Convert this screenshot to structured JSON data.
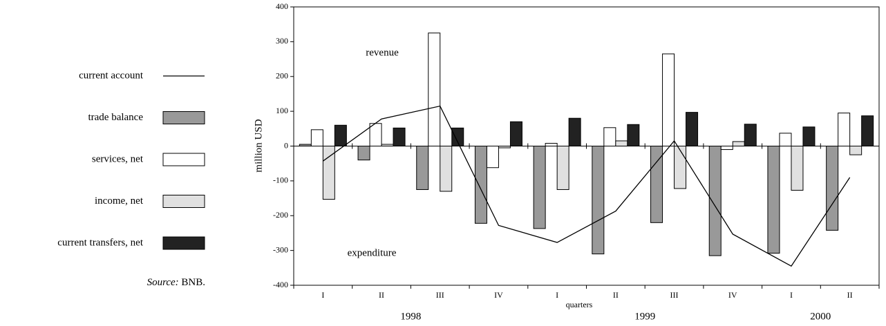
{
  "chart_data": {
    "type": "bar",
    "categories": [
      "I",
      "II",
      "III",
      "IV",
      "I",
      "II",
      "III",
      "IV",
      "I",
      "II"
    ],
    "years": [
      "1998",
      "1999",
      "2000"
    ],
    "year_quarters": [
      4,
      4,
      2
    ],
    "series": [
      {
        "name": "current account",
        "type": "line",
        "color": "#000000",
        "values": [
          -43,
          78,
          115,
          -228,
          -277,
          -187,
          15,
          -253,
          -345,
          -90
        ]
      },
      {
        "name": "trade balance",
        "type": "bar",
        "color": "#999999",
        "values": [
          5,
          -40,
          -125,
          -222,
          -237,
          -310,
          -220,
          -315,
          -308,
          -242
        ]
      },
      {
        "name": "services, net",
        "type": "bar",
        "color": "#ffffff",
        "values": [
          47,
          65,
          325,
          -62,
          8,
          53,
          265,
          -10,
          37,
          95
        ]
      },
      {
        "name": "income, net",
        "type": "bar",
        "color": "#e0e0e0",
        "values": [
          -153,
          5,
          -130,
          -5,
          -125,
          15,
          -122,
          13,
          -127,
          -25
        ]
      },
      {
        "name": "current transfers, net",
        "type": "bar",
        "color": "#222222",
        "values": [
          60,
          52,
          52,
          70,
          80,
          62,
          97,
          63,
          55,
          87
        ]
      }
    ],
    "y_label": "million USD",
    "x_label": "quarters",
    "annotations": [
      "revenue",
      "expenditure"
    ],
    "source_label": "Source:",
    "source": "BNB.",
    "ylim": [
      -400,
      400
    ],
    "yticks": [
      -400,
      -300,
      -200,
      -100,
      0,
      100,
      200,
      300,
      400
    ],
    "legend": "left"
  }
}
